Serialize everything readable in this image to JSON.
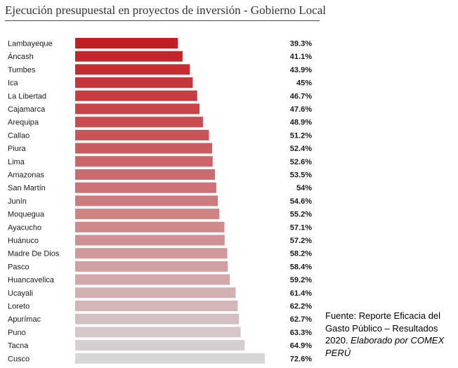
{
  "title": "Ejecución presupuestal en proyectos de inversión - Gobierno Local",
  "source": {
    "text": "Fuente: Reporte Eficacia del Gasto Público – Resultados 2020.",
    "italic_text": "Elaborado por COMEX PERÚ"
  },
  "colors": {
    "top": "#c41e24",
    "bottom": "#d6d6d6",
    "text": "#1a1a1a"
  },
  "chart_data": {
    "type": "bar",
    "orientation": "horizontal",
    "sorted": "ascending",
    "unit": "%",
    "xlim": [
      0,
      100
    ],
    "categories": [
      "Lambayeque",
      "Áncash",
      "Tumbes",
      "Ica",
      "La Libertad",
      "Cajamarca",
      "Arequipa",
      "Callao",
      "Piura",
      "Lima",
      "Amazonas",
      "San Martín",
      "Junín",
      "Moquegua",
      "Ayacucho",
      "Huánuco",
      "Madre De Dios",
      "Pasco",
      "Huancavelica",
      "Ucayali",
      "Loreto",
      "Apurímac",
      "Puno",
      "Tacna",
      "Cusco"
    ],
    "values": [
      39.3,
      41.1,
      43.9,
      45,
      46.7,
      47.6,
      48.9,
      51.2,
      52.4,
      52.6,
      53.5,
      54,
      54.6,
      55.2,
      57.1,
      57.2,
      58.2,
      58.4,
      59.2,
      61.4,
      62.2,
      62.7,
      63.3,
      64.9,
      72.6
    ],
    "value_labels": [
      "39.3%",
      "41.1%",
      "43.9%",
      "45%",
      "46.7%",
      "47.6%",
      "48.9%",
      "51.2%",
      "52.4%",
      "52.6%",
      "53.5%",
      "54%",
      "54.6%",
      "55.2%",
      "57.1%",
      "57.2%",
      "58.2%",
      "58.4%",
      "59.2%",
      "61.4%",
      "62.2%",
      "62.7%",
      "63.3%",
      "64.9%",
      "72.6%"
    ]
  }
}
